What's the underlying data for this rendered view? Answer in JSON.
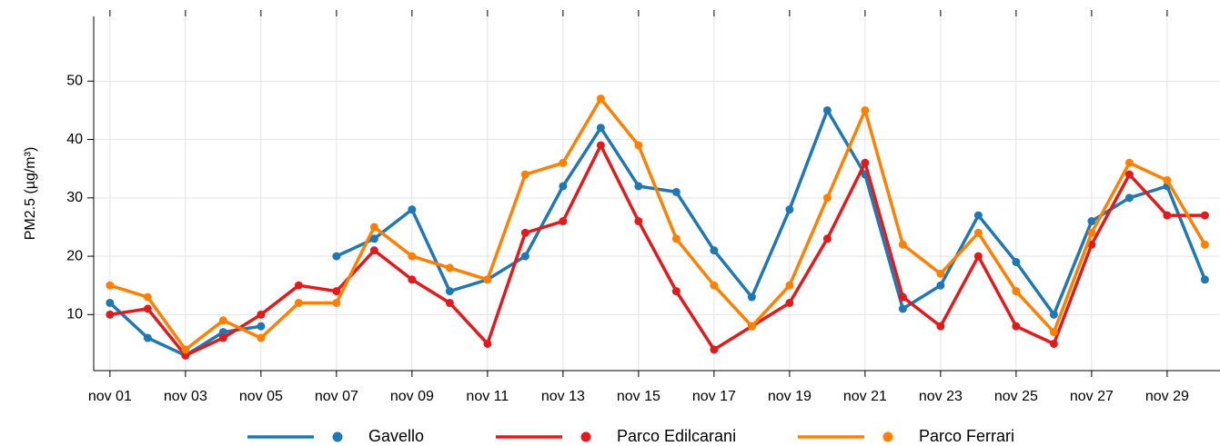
{
  "chart_data": {
    "type": "line",
    "ylabel": "PM2.5 (µg/m³)",
    "x": [
      1,
      2,
      3,
      4,
      5,
      6,
      7,
      8,
      9,
      10,
      11,
      12,
      13,
      14,
      15,
      16,
      17,
      18,
      19,
      20,
      21,
      22,
      23,
      24,
      25,
      26,
      27,
      28,
      29,
      30
    ],
    "xlim": [
      0.57,
      30.4
    ],
    "xticks": [
      {
        "value": 1,
        "label": "nov 01"
      },
      {
        "value": 3,
        "label": "nov 03"
      },
      {
        "value": 5,
        "label": "nov 05"
      },
      {
        "value": 7,
        "label": "nov 07"
      },
      {
        "value": 9,
        "label": "nov 09"
      },
      {
        "value": 11,
        "label": "nov 11"
      },
      {
        "value": 13,
        "label": "nov 13"
      },
      {
        "value": 15,
        "label": "nov 15"
      },
      {
        "value": 17,
        "label": "nov 17"
      },
      {
        "value": 19,
        "label": "nov 19"
      },
      {
        "value": 21,
        "label": "nov 21"
      },
      {
        "value": 23,
        "label": "nov 23"
      },
      {
        "value": 25,
        "label": "nov 25"
      },
      {
        "value": 27,
        "label": "nov 27"
      },
      {
        "value": 29,
        "label": "nov 29"
      }
    ],
    "ylim": [
      0.4,
      61.1
    ],
    "yticks": [
      10,
      20,
      30,
      40,
      50
    ],
    "grid": true,
    "legend": "bottom",
    "series": [
      {
        "name": "Gavello",
        "color": "#1f78b4",
        "values": [
          12,
          6,
          3,
          7,
          8,
          null,
          20,
          23,
          28,
          14,
          16,
          20,
          32,
          42,
          32,
          31,
          21,
          13,
          28,
          45,
          34,
          11,
          15,
          27,
          19,
          10,
          26,
          30,
          32,
          16
        ]
      },
      {
        "name": "Parco Edilcarani",
        "color": "#e31a1c",
        "values": [
          10,
          11,
          3,
          6,
          10,
          15,
          14,
          21,
          16,
          12,
          5,
          24,
          26,
          39,
          26,
          14,
          4,
          8,
          12,
          23,
          36,
          13,
          8,
          20,
          8,
          5,
          22,
          34,
          27,
          27
        ]
      },
      {
        "name": "Parco Ferrari",
        "color": "#ff7f00",
        "values": [
          15,
          13,
          4,
          9,
          6,
          12,
          12,
          25,
          20,
          18,
          16,
          34,
          36,
          47,
          39,
          23,
          15,
          8,
          15,
          30,
          45,
          22,
          17,
          24,
          14,
          7,
          24,
          36,
          33,
          22
        ]
      }
    ]
  }
}
